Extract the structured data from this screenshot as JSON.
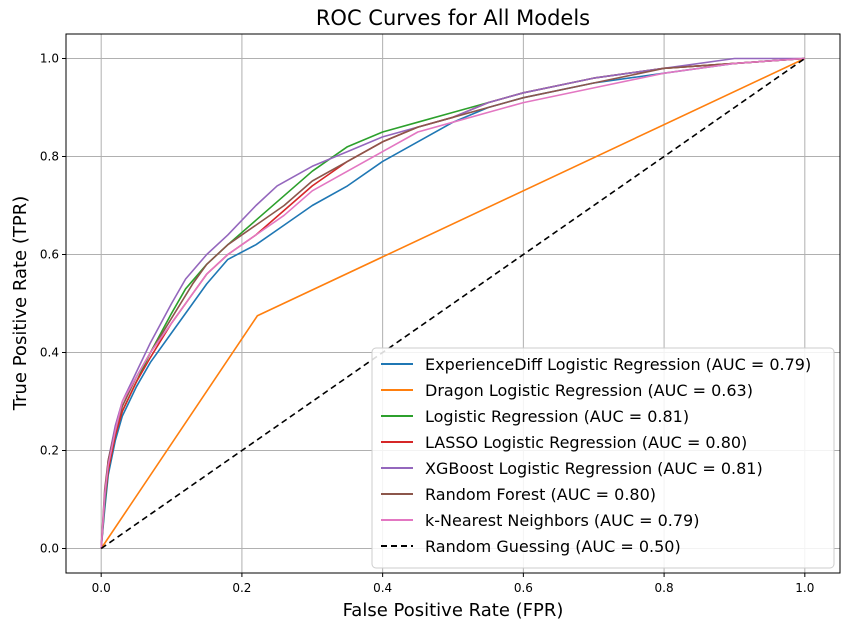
{
  "chart_data": {
    "type": "line",
    "title": "ROC Curves for All Models",
    "xlabel": "False Positive Rate (FPR)",
    "ylabel": "True Positive Rate (TPR)",
    "xlim": [
      -0.05,
      1.05
    ],
    "ylim": [
      -0.05,
      1.05
    ],
    "xticks": [
      "0.0",
      "0.2",
      "0.4",
      "0.6",
      "0.8",
      "1.0"
    ],
    "yticks": [
      "0.0",
      "0.2",
      "0.4",
      "0.6",
      "0.8",
      "1.0"
    ],
    "grid": true,
    "legend_position": "lower-right",
    "series": [
      {
        "name": "ExperienceDiff Logistic Regression (AUC = 0.79)",
        "color": "#1f77b4",
        "dashed": false,
        "points": [
          [
            0,
            0
          ],
          [
            0.005,
            0.08
          ],
          [
            0.01,
            0.15
          ],
          [
            0.02,
            0.22
          ],
          [
            0.03,
            0.27
          ],
          [
            0.05,
            0.33
          ],
          [
            0.07,
            0.38
          ],
          [
            0.1,
            0.44
          ],
          [
            0.13,
            0.5
          ],
          [
            0.15,
            0.54
          ],
          [
            0.18,
            0.59
          ],
          [
            0.22,
            0.62
          ],
          [
            0.26,
            0.66
          ],
          [
            0.3,
            0.7
          ],
          [
            0.35,
            0.74
          ],
          [
            0.4,
            0.79
          ],
          [
            0.45,
            0.83
          ],
          [
            0.5,
            0.87
          ],
          [
            0.55,
            0.9
          ],
          [
            0.6,
            0.92
          ],
          [
            0.7,
            0.95
          ],
          [
            0.8,
            0.97
          ],
          [
            0.9,
            0.99
          ],
          [
            1,
            1
          ]
        ]
      },
      {
        "name": "Dragon Logistic Regression (AUC = 0.63)",
        "color": "#ff7f0e",
        "dashed": false,
        "points": [
          [
            0,
            0
          ],
          [
            0.222,
            0.475
          ],
          [
            1,
            1
          ]
        ]
      },
      {
        "name": "Logistic Regression (AUC = 0.81)",
        "color": "#2ca02c",
        "dashed": false,
        "points": [
          [
            0,
            0
          ],
          [
            0.005,
            0.09
          ],
          [
            0.01,
            0.16
          ],
          [
            0.02,
            0.23
          ],
          [
            0.03,
            0.28
          ],
          [
            0.05,
            0.34
          ],
          [
            0.07,
            0.4
          ],
          [
            0.1,
            0.48
          ],
          [
            0.12,
            0.53
          ],
          [
            0.15,
            0.58
          ],
          [
            0.18,
            0.62
          ],
          [
            0.22,
            0.67
          ],
          [
            0.26,
            0.72
          ],
          [
            0.3,
            0.77
          ],
          [
            0.35,
            0.82
          ],
          [
            0.4,
            0.85
          ],
          [
            0.45,
            0.87
          ],
          [
            0.5,
            0.89
          ],
          [
            0.55,
            0.91
          ],
          [
            0.6,
            0.93
          ],
          [
            0.7,
            0.96
          ],
          [
            0.8,
            0.98
          ],
          [
            0.9,
            0.99
          ],
          [
            1,
            1
          ]
        ]
      },
      {
        "name": "LASSO Logistic Regression (AUC = 0.80)",
        "color": "#d62728",
        "dashed": false,
        "points": [
          [
            0,
            0
          ],
          [
            0.005,
            0.1
          ],
          [
            0.01,
            0.16
          ],
          [
            0.02,
            0.23
          ],
          [
            0.03,
            0.28
          ],
          [
            0.05,
            0.34
          ],
          [
            0.07,
            0.39
          ],
          [
            0.1,
            0.46
          ],
          [
            0.13,
            0.52
          ],
          [
            0.15,
            0.56
          ],
          [
            0.18,
            0.6
          ],
          [
            0.22,
            0.64
          ],
          [
            0.26,
            0.69
          ],
          [
            0.3,
            0.74
          ],
          [
            0.35,
            0.79
          ],
          [
            0.4,
            0.83
          ],
          [
            0.45,
            0.86
          ],
          [
            0.5,
            0.88
          ],
          [
            0.55,
            0.91
          ],
          [
            0.6,
            0.93
          ],
          [
            0.7,
            0.96
          ],
          [
            0.8,
            0.98
          ],
          [
            0.9,
            0.99
          ],
          [
            1,
            1
          ]
        ]
      },
      {
        "name": "XGBoost Logistic Regression (AUC = 0.81)",
        "color": "#9467bd",
        "dashed": false,
        "points": [
          [
            0,
            0
          ],
          [
            0.005,
            0.1
          ],
          [
            0.01,
            0.18
          ],
          [
            0.02,
            0.25
          ],
          [
            0.03,
            0.3
          ],
          [
            0.05,
            0.36
          ],
          [
            0.07,
            0.42
          ],
          [
            0.1,
            0.5
          ],
          [
            0.12,
            0.55
          ],
          [
            0.15,
            0.6
          ],
          [
            0.18,
            0.64
          ],
          [
            0.22,
            0.7
          ],
          [
            0.25,
            0.74
          ],
          [
            0.3,
            0.78
          ],
          [
            0.35,
            0.81
          ],
          [
            0.4,
            0.84
          ],
          [
            0.45,
            0.86
          ],
          [
            0.5,
            0.88
          ],
          [
            0.55,
            0.91
          ],
          [
            0.6,
            0.93
          ],
          [
            0.7,
            0.96
          ],
          [
            0.8,
            0.98
          ],
          [
            0.9,
            1.0
          ],
          [
            1,
            1
          ]
        ]
      },
      {
        "name": "Random Forest (AUC = 0.80)",
        "color": "#8c564b",
        "dashed": false,
        "points": [
          [
            0,
            0
          ],
          [
            0.005,
            0.12
          ],
          [
            0.01,
            0.18
          ],
          [
            0.02,
            0.24
          ],
          [
            0.03,
            0.29
          ],
          [
            0.05,
            0.35
          ],
          [
            0.07,
            0.4
          ],
          [
            0.1,
            0.47
          ],
          [
            0.13,
            0.54
          ],
          [
            0.15,
            0.58
          ],
          [
            0.18,
            0.62
          ],
          [
            0.22,
            0.66
          ],
          [
            0.26,
            0.7
          ],
          [
            0.3,
            0.75
          ],
          [
            0.35,
            0.79
          ],
          [
            0.4,
            0.83
          ],
          [
            0.45,
            0.86
          ],
          [
            0.5,
            0.88
          ],
          [
            0.55,
            0.9
          ],
          [
            0.6,
            0.92
          ],
          [
            0.7,
            0.95
          ],
          [
            0.8,
            0.98
          ],
          [
            0.9,
            0.99
          ],
          [
            1,
            1
          ]
        ]
      },
      {
        "name": "k-Nearest Neighbors (AUC = 0.79)",
        "color": "#e377c2",
        "dashed": false,
        "points": [
          [
            0,
            0
          ],
          [
            0.005,
            0.11
          ],
          [
            0.01,
            0.17
          ],
          [
            0.02,
            0.24
          ],
          [
            0.03,
            0.3
          ],
          [
            0.05,
            0.35
          ],
          [
            0.07,
            0.4
          ],
          [
            0.1,
            0.46
          ],
          [
            0.13,
            0.52
          ],
          [
            0.15,
            0.56
          ],
          [
            0.18,
            0.6
          ],
          [
            0.22,
            0.64
          ],
          [
            0.26,
            0.68
          ],
          [
            0.3,
            0.73
          ],
          [
            0.35,
            0.77
          ],
          [
            0.4,
            0.81
          ],
          [
            0.45,
            0.85
          ],
          [
            0.5,
            0.87
          ],
          [
            0.55,
            0.89
          ],
          [
            0.6,
            0.91
          ],
          [
            0.7,
            0.94
          ],
          [
            0.8,
            0.97
          ],
          [
            0.9,
            0.99
          ],
          [
            1,
            1
          ]
        ]
      },
      {
        "name": "Random Guessing (AUC = 0.50)",
        "color": "#000000",
        "dashed": true,
        "points": [
          [
            0,
            0
          ],
          [
            1,
            1
          ]
        ]
      }
    ]
  }
}
